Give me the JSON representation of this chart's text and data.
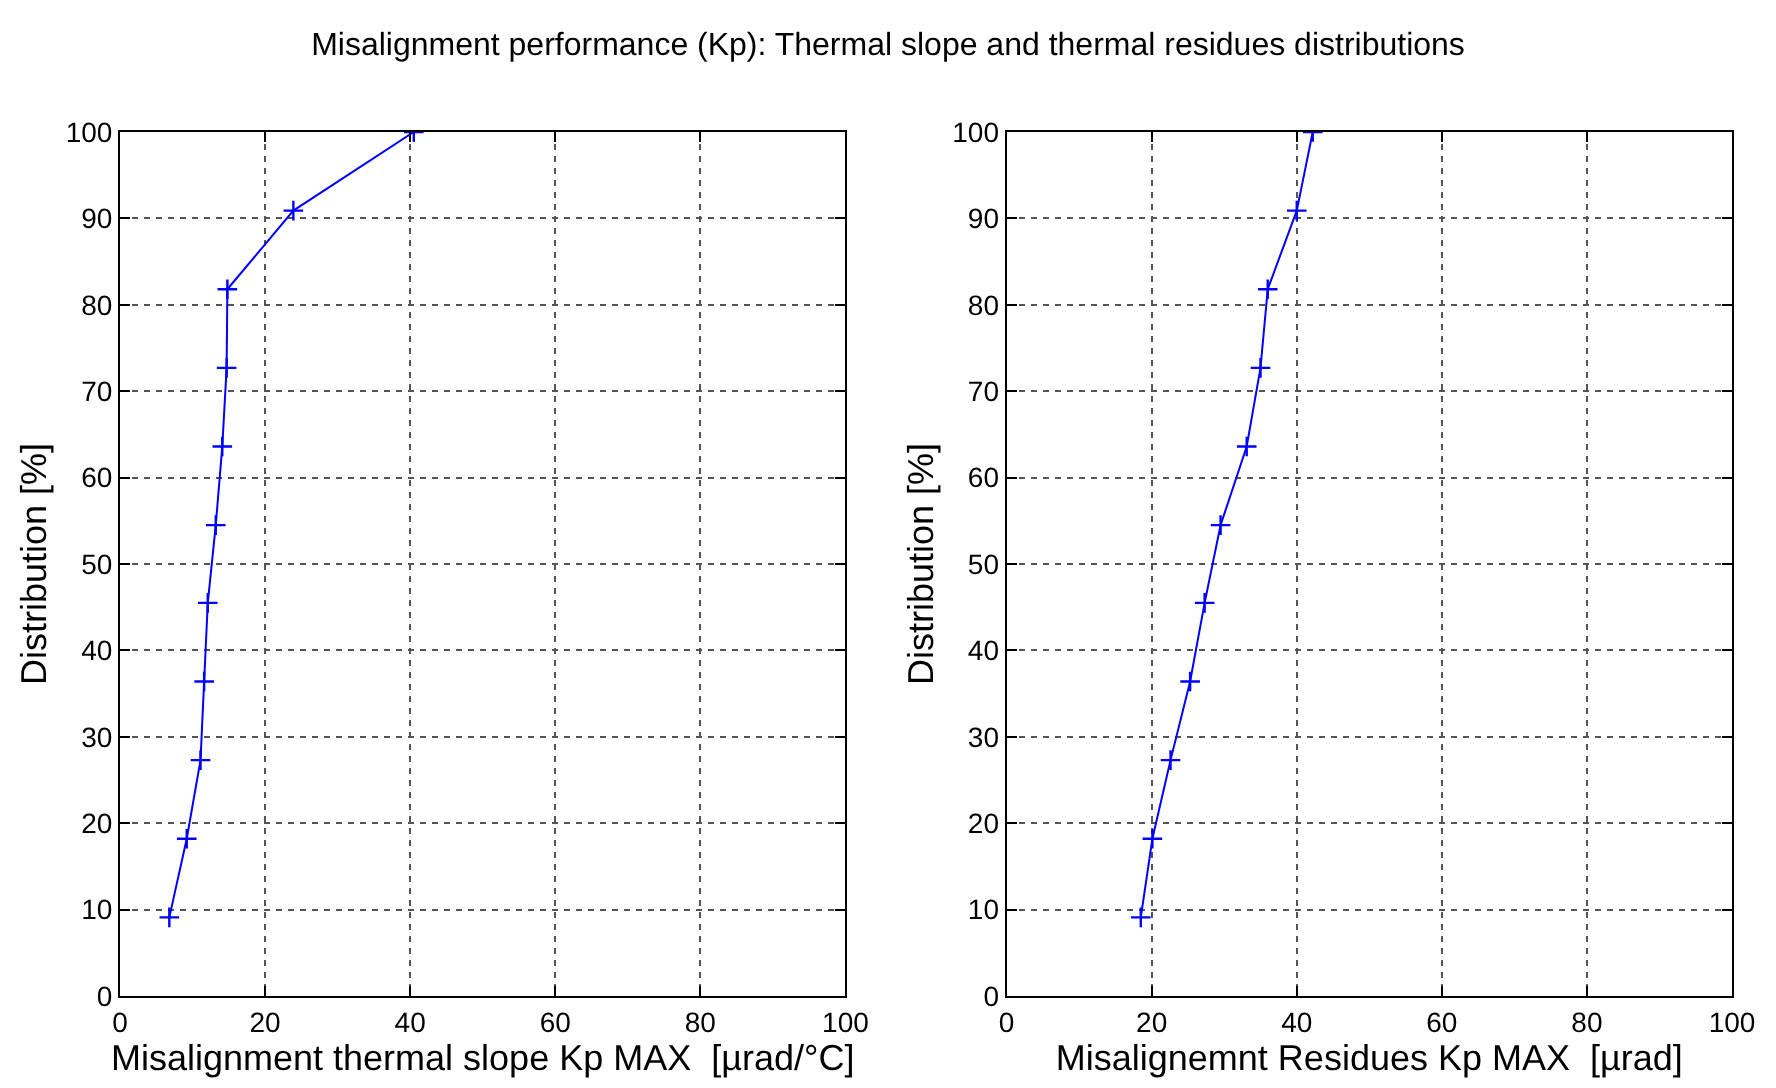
{
  "chart_data": [
    {
      "type": "line",
      "title": "Misalignment performance (Kp): Thermal slope and thermal residues distributions",
      "xlabel": "Misalignment thermal slope Kp MAX  [µrad/°C]",
      "ylabel": "Distribution [%]",
      "xlim": [
        0,
        100
      ],
      "xticks": [
        0,
        20,
        40,
        60,
        80,
        100
      ],
      "ylim": [
        0,
        100
      ],
      "yticks": [
        0,
        10,
        20,
        30,
        40,
        50,
        60,
        70,
        80,
        90,
        100
      ],
      "grid": true,
      "marker": "cross",
      "line_style": "solid",
      "series": [
        {
          "color": "#0000ff",
          "x": [
            6.8,
            9.2,
            11.1,
            11.6,
            12.1,
            13.2,
            14.1,
            14.7,
            14.8,
            23.9,
            40.5
          ],
          "values": [
            9.1,
            18.2,
            27.3,
            36.4,
            45.5,
            54.5,
            63.6,
            72.7,
            81.8,
            90.9,
            100
          ]
        }
      ]
    },
    {
      "type": "line",
      "xlabel": "Misalignemnt Residues Kp MAX  [µrad]",
      "ylabel": "Distribution [%]",
      "xlim": [
        0,
        100
      ],
      "xticks": [
        0,
        20,
        40,
        60,
        80,
        100
      ],
      "ylim": [
        0,
        100
      ],
      "yticks": [
        0,
        10,
        20,
        30,
        40,
        50,
        60,
        70,
        80,
        90,
        100
      ],
      "grid": true,
      "marker": "cross",
      "line_style": "solid",
      "series": [
        {
          "color": "#0000ff",
          "x": [
            18.5,
            20.1,
            22.6,
            25.3,
            27.3,
            29.5,
            33.1,
            35.0,
            36.0,
            40.0,
            42.2
          ],
          "values": [
            9.1,
            18.2,
            27.3,
            36.4,
            45.5,
            54.5,
            63.6,
            72.7,
            81.8,
            90.9,
            100
          ]
        }
      ]
    }
  ]
}
